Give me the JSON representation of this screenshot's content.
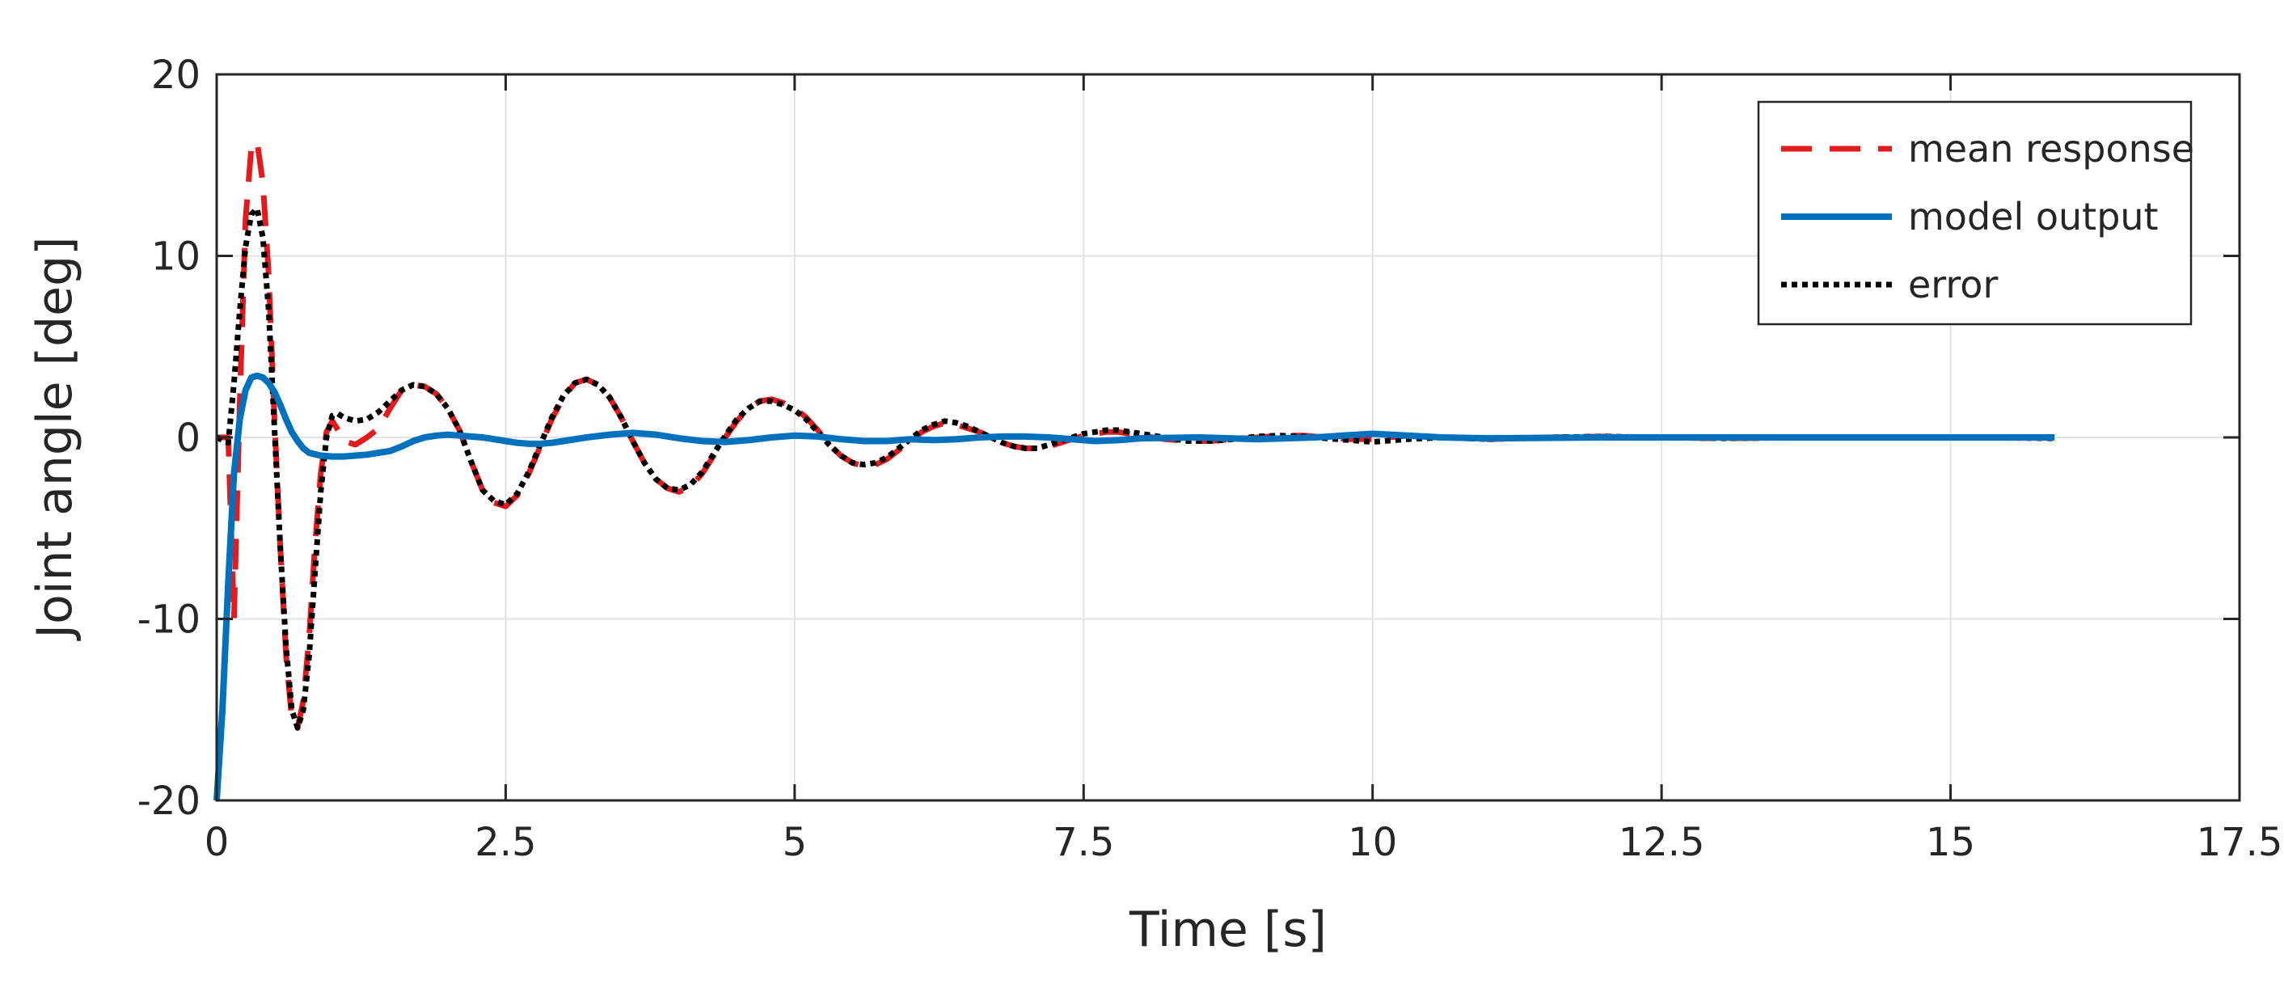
{
  "chart_data": {
    "type": "line",
    "title": "",
    "xlabel": "Time [s]",
    "ylabel": "Joint angle [deg]",
    "xlim": [
      0,
      17.5
    ],
    "ylim": [
      -20,
      20
    ],
    "xticks": [
      0,
      2.5,
      5,
      7.5,
      10,
      12.5,
      15,
      17.5
    ],
    "xtick_labels": [
      "0",
      "2.5",
      "5",
      "7.5",
      "10",
      "12.5",
      "15",
      "17.5"
    ],
    "yticks": [
      -20,
      -10,
      0,
      10,
      20
    ],
    "ytick_labels": [
      "-20",
      "-10",
      "0",
      "10",
      "20"
    ],
    "grid": true,
    "legend_position": "top-right",
    "series": [
      {
        "name": "mean response",
        "style": "dashed",
        "color": "#e41a1c",
        "points": [
          [
            0,
            0
          ],
          [
            0.1,
            0
          ],
          [
            0.15,
            -10
          ],
          [
            0.2,
            2
          ],
          [
            0.25,
            12
          ],
          [
            0.3,
            16
          ],
          [
            0.35,
            16.3
          ],
          [
            0.4,
            14
          ],
          [
            0.45,
            9
          ],
          [
            0.5,
            1
          ],
          [
            0.55,
            -6
          ],
          [
            0.6,
            -12
          ],
          [
            0.65,
            -15.5
          ],
          [
            0.7,
            -16
          ],
          [
            0.75,
            -14.5
          ],
          [
            0.8,
            -11
          ],
          [
            0.85,
            -6
          ],
          [
            0.9,
            -2
          ],
          [
            0.95,
            0.3
          ],
          [
            1.0,
            0.9
          ],
          [
            1.05,
            0.4
          ],
          [
            1.1,
            -0.2
          ],
          [
            1.2,
            -0.4
          ],
          [
            1.3,
            0
          ],
          [
            1.4,
            0.5
          ],
          [
            1.5,
            1.6
          ],
          [
            1.6,
            2.6
          ],
          [
            1.7,
            2.9
          ],
          [
            1.8,
            2.8
          ],
          [
            1.9,
            2.4
          ],
          [
            2.0,
            1.6
          ],
          [
            2.1,
            0.4
          ],
          [
            2.2,
            -1.3
          ],
          [
            2.3,
            -2.9
          ],
          [
            2.4,
            -3.6
          ],
          [
            2.5,
            -3.8
          ],
          [
            2.6,
            -3.2
          ],
          [
            2.7,
            -2.0
          ],
          [
            2.8,
            -0.5
          ],
          [
            2.9,
            1.0
          ],
          [
            3.0,
            2.2
          ],
          [
            3.1,
            3.0
          ],
          [
            3.2,
            3.2
          ],
          [
            3.3,
            2.9
          ],
          [
            3.4,
            2.2
          ],
          [
            3.5,
            1.1
          ],
          [
            3.6,
            -0.2
          ],
          [
            3.7,
            -1.4
          ],
          [
            3.8,
            -2.3
          ],
          [
            3.9,
            -2.8
          ],
          [
            4.0,
            -3.0
          ],
          [
            4.1,
            -2.7
          ],
          [
            4.2,
            -2.0
          ],
          [
            4.3,
            -1.0
          ],
          [
            4.4,
            0
          ],
          [
            4.5,
            0.9
          ],
          [
            4.6,
            1.6
          ],
          [
            4.7,
            2.0
          ],
          [
            4.8,
            2.1
          ],
          [
            4.9,
            1.9
          ],
          [
            5.0,
            1.6
          ],
          [
            5.1,
            1.1
          ],
          [
            5.2,
            0.4
          ],
          [
            5.3,
            -0.4
          ],
          [
            5.4,
            -1.0
          ],
          [
            5.5,
            -1.4
          ],
          [
            5.6,
            -1.6
          ],
          [
            5.7,
            -1.5
          ],
          [
            5.8,
            -1.2
          ],
          [
            5.9,
            -0.7
          ],
          [
            6.0,
            -0.2
          ],
          [
            6.1,
            0.3
          ],
          [
            6.2,
            0.6
          ],
          [
            6.3,
            0.8
          ],
          [
            6.4,
            0.7
          ],
          [
            6.5,
            0.5
          ],
          [
            6.6,
            0.3
          ],
          [
            6.7,
            0
          ],
          [
            6.8,
            -0.3
          ],
          [
            6.9,
            -0.5
          ],
          [
            7.0,
            -0.6
          ],
          [
            7.1,
            -0.6
          ],
          [
            7.2,
            -0.5
          ],
          [
            7.3,
            -0.3
          ],
          [
            7.4,
            -0.1
          ],
          [
            7.5,
            0.1
          ],
          [
            7.6,
            0.2
          ],
          [
            7.7,
            0.3
          ],
          [
            7.8,
            0.3
          ],
          [
            7.9,
            0.2
          ],
          [
            8.0,
            0.1
          ],
          [
            8.2,
            -0.1
          ],
          [
            8.4,
            -0.2
          ],
          [
            8.6,
            -0.2
          ],
          [
            8.8,
            -0.1
          ],
          [
            9.0,
            0
          ],
          [
            9.2,
            0.1
          ],
          [
            9.4,
            0.1
          ],
          [
            9.6,
            0
          ],
          [
            9.8,
            -0.1
          ],
          [
            10.0,
            -0.1
          ],
          [
            10.3,
            0.1
          ],
          [
            10.6,
            0
          ],
          [
            11.0,
            -0.1
          ],
          [
            11.5,
            0
          ],
          [
            12.0,
            0.05
          ],
          [
            12.5,
            0
          ],
          [
            13.0,
            -0.05
          ],
          [
            14.0,
            0
          ],
          [
            15.0,
            0
          ],
          [
            15.9,
            0
          ]
        ]
      },
      {
        "name": "model output",
        "style": "solid",
        "color": "#0072bd",
        "points": [
          [
            0,
            -20
          ],
          [
            0.05,
            -15
          ],
          [
            0.1,
            -8
          ],
          [
            0.15,
            -2
          ],
          [
            0.2,
            1
          ],
          [
            0.25,
            2.6
          ],
          [
            0.3,
            3.3
          ],
          [
            0.35,
            3.4
          ],
          [
            0.4,
            3.3
          ],
          [
            0.45,
            3.0
          ],
          [
            0.5,
            2.5
          ],
          [
            0.55,
            1.8
          ],
          [
            0.6,
            1.0
          ],
          [
            0.65,
            0.3
          ],
          [
            0.7,
            -0.2
          ],
          [
            0.75,
            -0.6
          ],
          [
            0.8,
            -0.85
          ],
          [
            0.9,
            -1.0
          ],
          [
            1.0,
            -1.05
          ],
          [
            1.1,
            -1.05
          ],
          [
            1.2,
            -1.0
          ],
          [
            1.3,
            -0.95
          ],
          [
            1.4,
            -0.85
          ],
          [
            1.5,
            -0.75
          ],
          [
            1.6,
            -0.5
          ],
          [
            1.7,
            -0.2
          ],
          [
            1.8,
            0
          ],
          [
            1.9,
            0.1
          ],
          [
            2.0,
            0.15
          ],
          [
            2.1,
            0.1
          ],
          [
            2.2,
            0.05
          ],
          [
            2.3,
            0
          ],
          [
            2.4,
            -0.1
          ],
          [
            2.5,
            -0.2
          ],
          [
            2.6,
            -0.3
          ],
          [
            2.7,
            -0.35
          ],
          [
            2.8,
            -0.35
          ],
          [
            2.9,
            -0.3
          ],
          [
            3.0,
            -0.2
          ],
          [
            3.2,
            0
          ],
          [
            3.4,
            0.15
          ],
          [
            3.6,
            0.25
          ],
          [
            3.8,
            0.15
          ],
          [
            4.0,
            -0.05
          ],
          [
            4.2,
            -0.2
          ],
          [
            4.4,
            -0.25
          ],
          [
            4.6,
            -0.15
          ],
          [
            4.8,
            0
          ],
          [
            5.0,
            0.1
          ],
          [
            5.2,
            0.05
          ],
          [
            5.4,
            -0.1
          ],
          [
            5.6,
            -0.2
          ],
          [
            5.8,
            -0.2
          ],
          [
            6.0,
            -0.1
          ],
          [
            6.2,
            -0.15
          ],
          [
            6.4,
            -0.1
          ],
          [
            6.6,
            0
          ],
          [
            6.8,
            0.05
          ],
          [
            7.0,
            0.05
          ],
          [
            7.2,
            0
          ],
          [
            7.4,
            -0.1
          ],
          [
            7.6,
            -0.2
          ],
          [
            7.8,
            -0.15
          ],
          [
            8.0,
            -0.05
          ],
          [
            8.5,
            0
          ],
          [
            9.0,
            -0.1
          ],
          [
            9.5,
            0
          ],
          [
            10.0,
            0.2
          ],
          [
            10.3,
            0.1
          ],
          [
            10.6,
            0
          ],
          [
            11.0,
            -0.05
          ],
          [
            12.0,
            0
          ],
          [
            13.0,
            0
          ],
          [
            14.0,
            0
          ],
          [
            15.0,
            0
          ],
          [
            15.9,
            0
          ]
        ]
      },
      {
        "name": "error",
        "style": "dotted",
        "color": "#000000",
        "points": [
          [
            0,
            0
          ],
          [
            0.1,
            -0.3
          ],
          [
            0.15,
            3
          ],
          [
            0.2,
            7
          ],
          [
            0.25,
            10.5
          ],
          [
            0.3,
            12.3
          ],
          [
            0.35,
            12.6
          ],
          [
            0.4,
            11
          ],
          [
            0.45,
            7
          ],
          [
            0.5,
            0.5
          ],
          [
            0.55,
            -6
          ],
          [
            0.6,
            -11.5
          ],
          [
            0.65,
            -15
          ],
          [
            0.7,
            -16
          ],
          [
            0.75,
            -15
          ],
          [
            0.8,
            -12
          ],
          [
            0.85,
            -7.5
          ],
          [
            0.9,
            -3
          ],
          [
            0.95,
            0
          ],
          [
            1.0,
            1.2
          ],
          [
            1.05,
            1.3
          ],
          [
            1.1,
            1.1
          ],
          [
            1.2,
            0.9
          ],
          [
            1.3,
            1.0
          ],
          [
            1.4,
            1.4
          ],
          [
            1.5,
            2.0
          ],
          [
            1.6,
            2.6
          ],
          [
            1.7,
            2.9
          ],
          [
            1.8,
            2.8
          ],
          [
            1.9,
            2.4
          ],
          [
            2.0,
            1.6
          ],
          [
            2.1,
            0.4
          ],
          [
            2.2,
            -1.3
          ],
          [
            2.3,
            -2.9
          ],
          [
            2.4,
            -3.5
          ],
          [
            2.5,
            -3.7
          ],
          [
            2.6,
            -3.1
          ],
          [
            2.7,
            -1.9
          ],
          [
            2.8,
            -0.4
          ],
          [
            2.9,
            1.1
          ],
          [
            3.0,
            2.3
          ],
          [
            3.1,
            3.0
          ],
          [
            3.2,
            3.2
          ],
          [
            3.3,
            2.9
          ],
          [
            3.4,
            2.2
          ],
          [
            3.5,
            1.1
          ],
          [
            3.6,
            -0.2
          ],
          [
            3.7,
            -1.4
          ],
          [
            3.8,
            -2.3
          ],
          [
            3.9,
            -2.8
          ],
          [
            4.0,
            -2.9
          ],
          [
            4.1,
            -2.6
          ],
          [
            4.2,
            -1.9
          ],
          [
            4.3,
            -0.9
          ],
          [
            4.4,
            0.1
          ],
          [
            4.5,
            1.0
          ],
          [
            4.6,
            1.6
          ],
          [
            4.7,
            2.0
          ],
          [
            4.8,
            2.0
          ],
          [
            4.9,
            1.8
          ],
          [
            5.0,
            1.5
          ],
          [
            5.1,
            1.0
          ],
          [
            5.2,
            0.3
          ],
          [
            5.3,
            -0.4
          ],
          [
            5.4,
            -1.0
          ],
          [
            5.5,
            -1.4
          ],
          [
            5.6,
            -1.5
          ],
          [
            5.7,
            -1.4
          ],
          [
            5.8,
            -1.1
          ],
          [
            5.9,
            -0.6
          ],
          [
            6.0,
            -0.1
          ],
          [
            6.1,
            0.4
          ],
          [
            6.2,
            0.7
          ],
          [
            6.3,
            0.9
          ],
          [
            6.4,
            0.8
          ],
          [
            6.5,
            0.6
          ],
          [
            6.6,
            0.3
          ],
          [
            6.7,
            0
          ],
          [
            6.8,
            -0.3
          ],
          [
            6.9,
            -0.5
          ],
          [
            7.0,
            -0.6
          ],
          [
            7.1,
            -0.6
          ],
          [
            7.2,
            -0.4
          ],
          [
            7.3,
            -0.2
          ],
          [
            7.4,
            0
          ],
          [
            7.5,
            0.2
          ],
          [
            7.6,
            0.3
          ],
          [
            7.7,
            0.4
          ],
          [
            7.8,
            0.4
          ],
          [
            7.9,
            0.3
          ],
          [
            8.0,
            0.2
          ],
          [
            8.2,
            0
          ],
          [
            8.4,
            -0.2
          ],
          [
            8.6,
            -0.2
          ],
          [
            8.8,
            -0.1
          ],
          [
            9.0,
            0.05
          ],
          [
            9.2,
            0.1
          ],
          [
            9.4,
            0.05
          ],
          [
            9.6,
            -0.05
          ],
          [
            9.8,
            -0.15
          ],
          [
            10.0,
            -0.25
          ],
          [
            10.3,
            -0.1
          ],
          [
            10.6,
            0
          ],
          [
            11.0,
            -0.1
          ],
          [
            11.5,
            0
          ],
          [
            12.0,
            0.05
          ],
          [
            12.5,
            0
          ],
          [
            13.0,
            -0.05
          ],
          [
            14.0,
            0
          ],
          [
            15.0,
            0
          ],
          [
            15.9,
            -0.05
          ]
        ]
      }
    ]
  }
}
